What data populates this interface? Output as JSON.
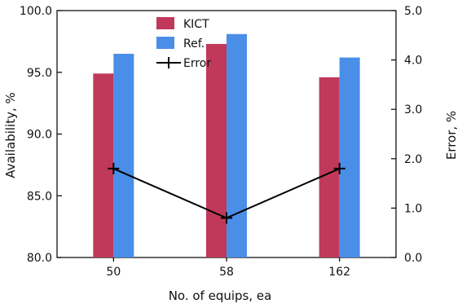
{
  "chart_data": {
    "type": "bar",
    "categories": [
      "50",
      "58",
      "162"
    ],
    "series": [
      {
        "name": "KICT",
        "kind": "bar",
        "axis": "left",
        "color": "#C0395A",
        "values": [
          94.9,
          97.3,
          94.6
        ]
      },
      {
        "name": "Ref.",
        "kind": "bar",
        "axis": "left",
        "color": "#4A8EE8",
        "values": [
          96.5,
          98.1,
          96.2
        ]
      },
      {
        "name": "Error",
        "kind": "line",
        "axis": "right",
        "color": "#000000",
        "values": [
          1.8,
          0.8,
          1.8
        ]
      }
    ],
    "xlabel": "No. of equips, ea",
    "ylabel": "Availability, %",
    "ylabel_right": "Error, %",
    "ylim": [
      80.0,
      100.0
    ],
    "ylim_right": [
      0.0,
      5.0
    ],
    "yticks": [
      "80.0",
      "85.0",
      "90.0",
      "95.0",
      "100.0"
    ],
    "yticks_right": [
      "0.0",
      "1.0",
      "2.0",
      "3.0",
      "4.0",
      "5.0"
    ],
    "grid": false,
    "legend_position": "top-center"
  }
}
